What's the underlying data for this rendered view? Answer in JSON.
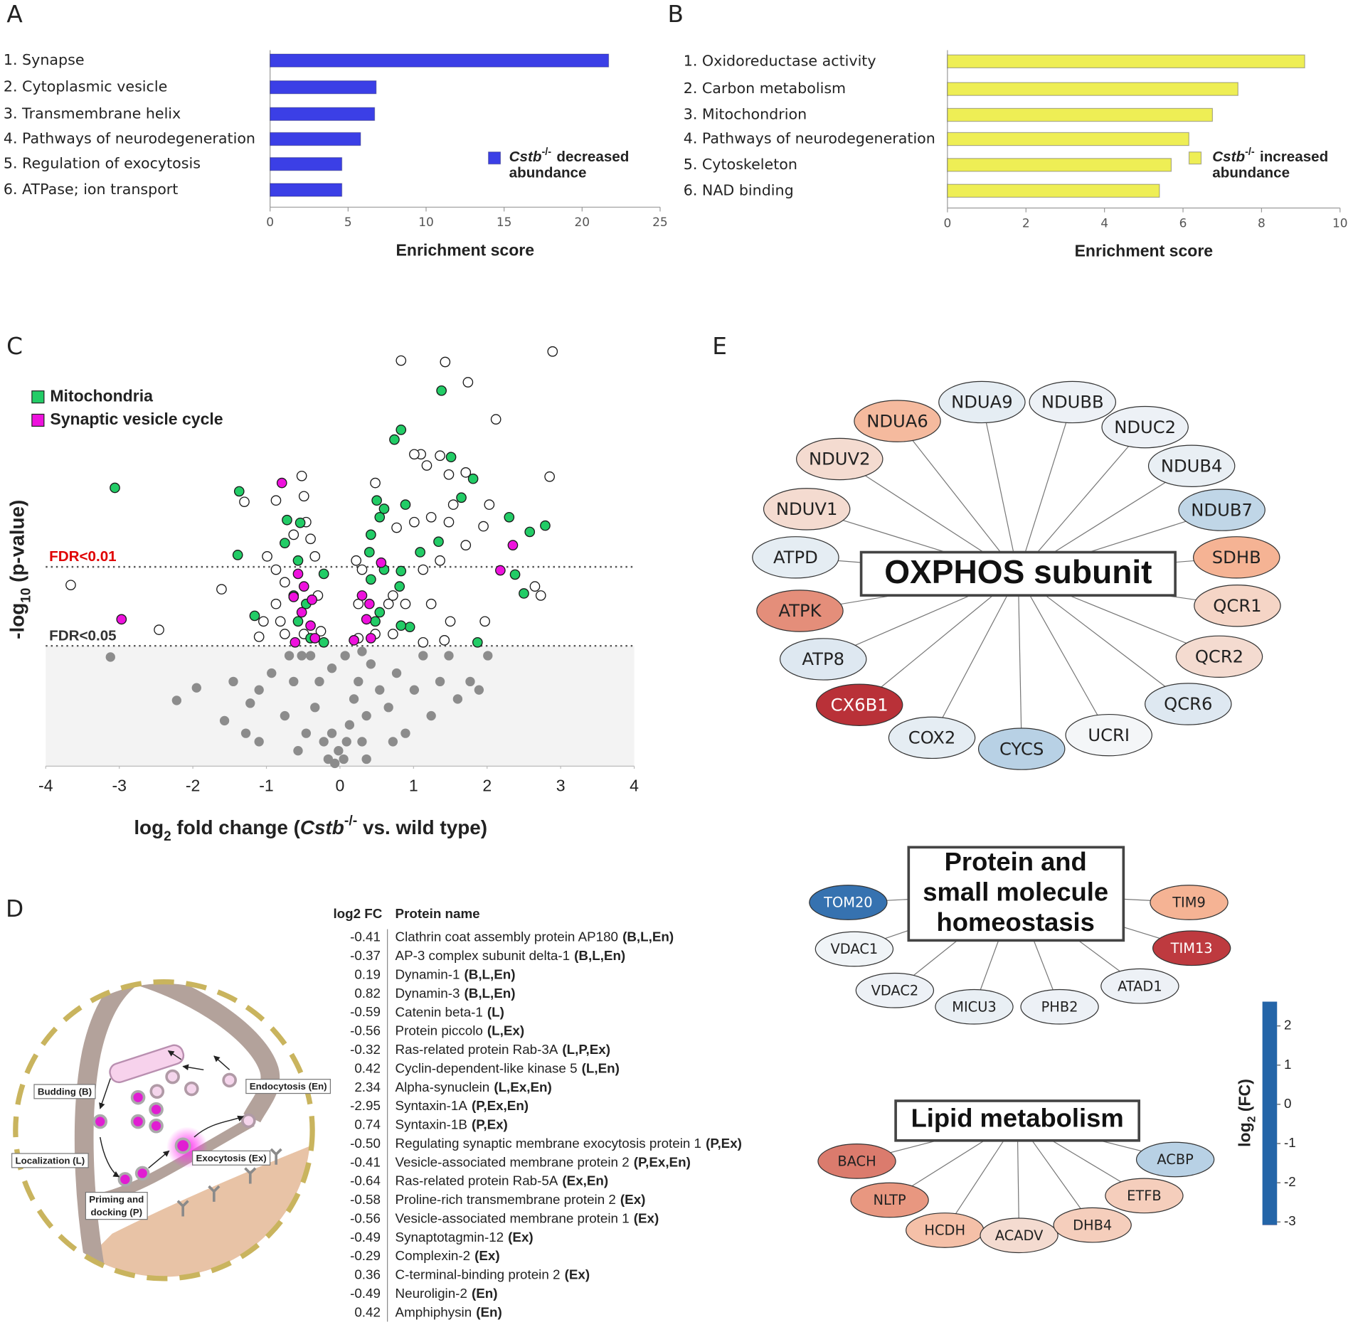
{
  "panel_labels": [
    "A",
    "B",
    "C",
    "D",
    "E"
  ],
  "chart_data": [
    {
      "type": "bar",
      "orientation": "horizontal",
      "categories": [
        "1. Synapse",
        "2. Cytoplasmic vesicle",
        "3. Transmembrane helix",
        "4. Pathways of neurodegeneration",
        "5. Regulation of exocytosis",
        "6. ATPase; ion transport"
      ],
      "series": [
        {
          "name": {
            "gene": "Cstb",
            "superscript": "-/-",
            "words": [
              "decreased",
              "abundance"
            ]
          },
          "color": "#3b3fe6",
          "values": [
            21.7,
            6.8,
            6.7,
            5.8,
            4.6,
            4.6
          ]
        }
      ],
      "xlim": [
        0,
        25
      ],
      "xticks": [
        0,
        5,
        10,
        15,
        20,
        25
      ],
      "xlabel": "Enrichment score"
    },
    {
      "type": "bar",
      "orientation": "horizontal",
      "categories": [
        "1. Oxidoreductase activity",
        "2. Carbon metabolism",
        "3. Mitochondrion",
        "4. Pathways of neurodegeneration",
        "5. Cytoskeleton",
        "6. NAD binding"
      ],
      "series": [
        {
          "name": {
            "gene": "Cstb",
            "superscript": "-/-",
            "words": [
              "increased",
              "abundance"
            ]
          },
          "color": "#eeee55",
          "values": [
            9.1,
            7.4,
            6.75,
            6.15,
            5.7,
            5.4
          ]
        }
      ],
      "xlim": [
        0,
        10
      ],
      "xticks": [
        0,
        2,
        4,
        6,
        8,
        10
      ],
      "xlabel": "Enrichment score"
    },
    {
      "type": "scatter",
      "xlabel": {
        "pre": "log",
        "sub": "2",
        "mid": " fold change (",
        "gene": "Cstb",
        "sup": "-/-",
        "post": " vs. wild type)"
      },
      "ylabel": {
        "pre": "-log",
        "sub": "10",
        "post": " (p-value)"
      },
      "xlim": [
        -4,
        4
      ],
      "xticks": [
        -4,
        -3,
        -2,
        -1,
        0,
        1,
        2,
        3,
        4
      ],
      "ylim": [
        0,
        6.02
      ],
      "annotations": [
        {
          "text": "FDR<0.01",
          "y": 2.85,
          "color": "#e00000"
        },
        {
          "text": "FDR<0.05",
          "y": 1.72,
          "color": "#333333"
        }
      ],
      "series": [
        {
          "color": "#8c8c8c",
          "x": [
            -3.12,
            -2.22,
            -1.95,
            -1.57,
            -1.28,
            -1.1,
            -0.93,
            -0.75,
            -0.63,
            -0.52,
            -0.46,
            -0.34,
            -0.28,
            -0.22,
            -0.16,
            -0.11,
            -0.07,
            -0.02,
            0.05,
            0.09,
            0.13,
            0.19,
            0.25,
            0.3,
            0.36,
            0.42,
            0.54,
            0.66,
            0.77,
            0.89,
            1.01,
            1.13,
            1.24,
            1.36,
            1.48,
            1.6,
            1.77,
            2.01,
            1.89,
            -1.1,
            -1.45,
            -1.22,
            -0.57,
            0.36,
            0.72,
            -0.4,
            0.07,
            -0.11,
            0.3,
            -0.69
          ],
          "values": [
            1.56,
            0.94,
            1.12,
            0.65,
            0.47,
            1.09,
            1.33,
            0.72,
            1.21,
            1.58,
            0.47,
            0.84,
            1.21,
            0.35,
            0.1,
            0.47,
            0.04,
            0.22,
            0.1,
            0.35,
            0.59,
            0.96,
            1.21,
            0.35,
            0.72,
            1.46,
            1.09,
            0.84,
            1.33,
            0.47,
            1.09,
            1.58,
            0.72,
            1.21,
            1.58,
            0.96,
            1.21,
            1.58,
            1.09,
            0.35,
            1.21,
            0.9,
            0.22,
            0.1,
            0.35,
            1.58,
            1.58,
            1.4,
            1.64,
            1.58
          ]
        },
        {
          "color": "#ffffff",
          "x": [
            0.83,
            1.43,
            2.89,
            1.74,
            2.12,
            1.1,
            1.18,
            1.36,
            1.48,
            1.71,
            2.85,
            -0.52,
            -0.49,
            -1.3,
            -0.87,
            -0.46,
            -0.4,
            -0.63,
            -0.34,
            -0.99,
            -0.87,
            -0.75,
            -0.87,
            -1.04,
            -1.1,
            -0.75,
            -0.49,
            -0.26,
            -3.66,
            -2.46,
            -1.61,
            1.24,
            1.48,
            1.71,
            1.95,
            2.03,
            1.01,
            1.13,
            1.24,
            0.89,
            0.77,
            0.66,
            0.3,
            0.25,
            0.48,
            0.72,
            1.13,
            1.42,
            2.65,
            2.73,
            1.97,
            1.5,
            0.22,
            0.48,
            0.72,
            1.36,
            1.54,
            -0.3,
            -0.81,
            0.25,
            1.01
          ],
          "values": [
            5.8,
            5.78,
            5.93,
            5.49,
            4.96,
            4.46,
            4.3,
            4.44,
            4.17,
            4.2,
            4.14,
            4.15,
            3.86,
            3.78,
            3.8,
            3.49,
            3.25,
            3.31,
            3.0,
            3.0,
            2.81,
            2.63,
            2.32,
            2.07,
            1.85,
            1.89,
            1.89,
            1.93,
            2.59,
            1.95,
            2.53,
            3.56,
            3.49,
            3.16,
            3.43,
            3.74,
            3.49,
            2.81,
            2.32,
            2.32,
            3.41,
            2.32,
            2.81,
            2.32,
            1.89,
            1.89,
            1.77,
            1.8,
            2.57,
            2.44,
            2.07,
            2.07,
            2.94,
            4.05,
            2.44,
            2.94,
            3.74,
            2.44,
            2.07,
            1.83,
            4.46
          ]
        },
        {
          "name": "Mitochondria",
          "color": "#22cc66",
          "x": [
            -3.06,
            -1.37,
            -1.39,
            -1.16,
            -0.72,
            -0.54,
            -0.75,
            -0.57,
            -0.63,
            -0.46,
            -0.57,
            -0.22,
            -0.4,
            -0.22,
            1.38,
            0.74,
            0.83,
            1.81,
            1.51,
            1.65,
            2.58,
            2.79,
            2.38,
            2.5,
            2.3,
            1.34,
            1.09,
            0.5,
            0.54,
            0.42,
            0.4,
            0.6,
            0.83,
            0.81,
            0.42,
            0.95,
            0.83,
            0.48,
            1.87,
            0.54,
            0.89,
            0.6
          ],
          "values": [
            3.98,
            3.93,
            3.02,
            2.15,
            3.52,
            3.48,
            3.19,
            2.94,
            2.44,
            2.32,
            2.07,
            2.75,
            1.83,
            1.77,
            5.37,
            4.67,
            4.81,
            4.11,
            4.42,
            3.84,
            3.35,
            3.44,
            2.74,
            2.47,
            3.56,
            3.21,
            3.06,
            3.8,
            3.56,
            3.31,
            3.06,
            2.81,
            2.79,
            2.57,
            2.67,
            1.99,
            2.01,
            2.07,
            1.77,
            2.2,
            3.74,
            3.68
          ]
        },
        {
          "name": "Synaptic vesicle cycle",
          "color": "#ee11dd",
          "x": [
            -2.97,
            -0.79,
            -0.57,
            2.18,
            2.35,
            -0.63,
            -0.38,
            -0.52,
            -0.4,
            -0.34,
            -0.61,
            0.4,
            0.36,
            0.19,
            0.42,
            0.56,
            0.3,
            -0.49
          ],
          "values": [
            2.1,
            4.05,
            2.75,
            2.8,
            3.16,
            2.42,
            2.38,
            2.2,
            2.01,
            1.83,
            1.77,
            2.32,
            2.1,
            1.8,
            1.83,
            2.91,
            2.44,
            2.57
          ]
        }
      ]
    }
  ],
  "pathway_diagram": {
    "labels": [
      [
        "Budding (B)"
      ],
      [
        "Localization (L)"
      ],
      [
        "Priming and",
        "docking (P)"
      ],
      [
        "Exocytosis (Ex)"
      ],
      [
        "Endocytosis (En)"
      ]
    ]
  },
  "table": {
    "header": [
      "log2 FC",
      "Protein name"
    ],
    "rows": [
      [
        "-0.41",
        "Clathrin coat assembly protein AP180",
        "(B,L,En)"
      ],
      [
        "-0.37",
        "AP-3 complex subunit delta-1",
        "(B,L,En)"
      ],
      [
        "0.19",
        "Dynamin-1",
        "(B,L,En)"
      ],
      [
        "0.82",
        "Dynamin-3",
        "(B,L,En)"
      ],
      [
        "-0.59",
        "Catenin beta-1",
        "(L)"
      ],
      [
        "-0.56",
        "Protein piccolo",
        "(L,Ex)"
      ],
      [
        "-0.32",
        "Ras-related protein Rab-3A",
        "(L,P,Ex)"
      ],
      [
        "0.42",
        "Cyclin-dependent-like kinase 5",
        "(L,En)"
      ],
      [
        "2.34",
        "Alpha-synuclein",
        "(L,Ex,En)"
      ],
      [
        "-2.95",
        "Syntaxin-1A",
        "(P,Ex,En)"
      ],
      [
        "0.74",
        "Syntaxin-1B",
        "(P,Ex)"
      ],
      [
        "-0.50",
        "Regulating synaptic membrane exocytosis protein 1",
        "(P,Ex)"
      ],
      [
        "-0.41",
        "Vesicle-associated membrane protein 2",
        "(P,Ex,En)"
      ],
      [
        "-0.64",
        "Ras-related protein Rab-5A",
        "(Ex,En)"
      ],
      [
        "-0.58",
        "Proline-rich transmembrane protein 2",
        "(Ex)"
      ],
      [
        "-0.56",
        "Vesicle-associated membrane protein 1",
        "(Ex)"
      ],
      [
        "-0.49",
        "Synaptotagmin-12",
        "(Ex)"
      ],
      [
        "-0.29",
        "Complexin-2",
        "(Ex)"
      ],
      [
        "0.36",
        "C-terminal-binding protein 2",
        "(Ex)"
      ],
      [
        "-0.49",
        "Neuroligin-2",
        "(En)"
      ],
      [
        "0.42",
        "Amphiphysin",
        "(En)"
      ]
    ]
  },
  "network": {
    "colormap": [
      [
        -3.08,
        "#2465a8"
      ],
      [
        -1,
        "#a9c8e0"
      ],
      [
        0,
        "#f4f6f8"
      ],
      [
        1,
        "#f5b394"
      ],
      [
        2.62,
        "#b01c2a"
      ]
    ],
    "clusters": [
      {
        "hub": [
          "OXPHOS subunit"
        ],
        "nodes": [
          {
            "label": "NDUA9",
            "value": -0.2
          },
          {
            "label": "NDUBB",
            "value": -0.1
          },
          {
            "label": "NDUC2",
            "value": -0.1
          },
          {
            "label": "NDUB4",
            "value": -0.15
          },
          {
            "label": "NDUB7",
            "value": -0.7
          },
          {
            "label": "SDHB",
            "value": 1.0
          },
          {
            "label": "QCR1",
            "value": 0.5
          },
          {
            "label": "QCR2",
            "value": 0.4
          },
          {
            "label": "QCR6",
            "value": -0.3
          },
          {
            "label": "UCRI",
            "value": 0.0
          },
          {
            "label": "CYCS",
            "value": -0.8
          },
          {
            "label": "COX2",
            "value": -0.2
          },
          {
            "label": "CX6B1",
            "value": 2.4
          },
          {
            "label": "ATP8",
            "value": -0.3
          },
          {
            "label": "ATPK",
            "value": 1.4
          },
          {
            "label": "ATPD",
            "value": -0.2
          },
          {
            "label": "NDUV1",
            "value": 0.4
          },
          {
            "label": "NDUV2",
            "value": 0.4
          },
          {
            "label": "NDUA6",
            "value": 0.9
          }
        ]
      },
      {
        "hub": [
          "Protein and",
          "small molecule",
          "homeostasis"
        ],
        "nodes": [
          {
            "label": "TOM20",
            "value": -2.8
          },
          {
            "label": "VDAC1",
            "value": -0.05
          },
          {
            "label": "VDAC2",
            "value": -0.1
          },
          {
            "label": "MICU3",
            "value": -0.15
          },
          {
            "label": "PHB2",
            "value": -0.1
          },
          {
            "label": "ATAD1",
            "value": -0.1
          },
          {
            "label": "TIM13",
            "value": 2.3
          },
          {
            "label": "TIM9",
            "value": 1.0
          }
        ]
      },
      {
        "hub": [
          "Lipid metabolism"
        ],
        "nodes": [
          {
            "label": "BACH",
            "value": 1.6
          },
          {
            "label": "NLTP",
            "value": 1.3
          },
          {
            "label": "HCDH",
            "value": 0.8
          },
          {
            "label": "ACADV",
            "value": 0.4
          },
          {
            "label": "DHB4",
            "value": 0.6
          },
          {
            "label": "ETFB",
            "value": 0.6
          },
          {
            "label": "ACBP",
            "value": -0.8
          }
        ]
      }
    ],
    "colorbar": {
      "label": {
        "pre": "log",
        "sub": "2",
        "post": " (FC)"
      },
      "ylim": [
        -3.08,
        2.62
      ],
      "yticks": [
        2,
        1,
        0,
        -1,
        -2,
        -3
      ]
    }
  }
}
